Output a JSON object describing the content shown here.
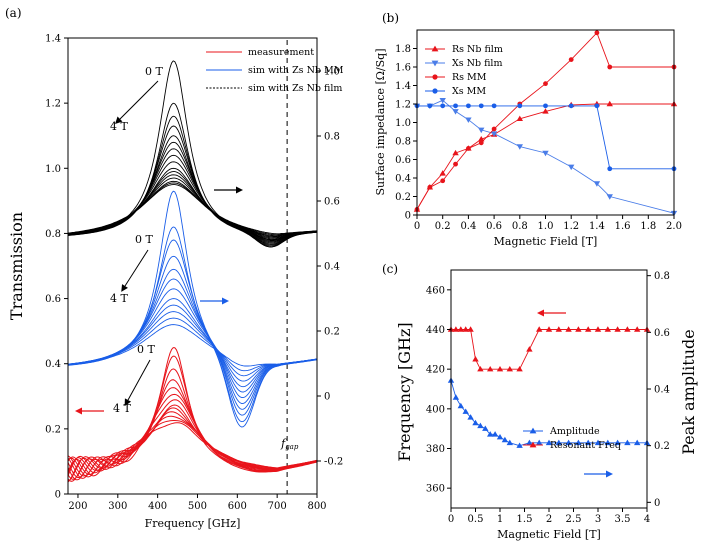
{
  "chart_data": [
    {
      "panel": "(a)",
      "type": "line",
      "xlabel": "Frequency [GHz]",
      "ylabel": "Transmission",
      "xlim": [
        175,
        800
      ],
      "ylim": [
        0,
        1.4
      ],
      "xticks": [
        "200",
        "300",
        "400",
        "500",
        "600",
        "700",
        "800"
      ],
      "yticks": [
        "0",
        "0.2",
        "0.4",
        "0.6",
        "0.8",
        "1.0",
        "1.2",
        "1.4"
      ],
      "y2ticks": [
        "-0.2",
        "0",
        "0.2",
        "0.4",
        "0.6",
        "0.8",
        "1.0"
      ],
      "legend": [
        "measurement",
        "sim with Zs Nb MM",
        "sim with Zs Nb film"
      ],
      "fgap_label": "f",
      "fgap_sub": "gap",
      "fgap_x": 725,
      "field_start": "0 T",
      "field_end": "4 T",
      "colors": {
        "measurement": "#e8141b",
        "mm": "#1a5ee8",
        "film": "#000000"
      },
      "series_groups": [
        {
          "name": "sim with Zs Nb film",
          "center": 440,
          "peaks": [
            1.33,
            1.2,
            1.16,
            1.13,
            1.1,
            1.08,
            1.06,
            1.04,
            1.02,
            1.0,
            0.99,
            0.98,
            0.97,
            0.96,
            0.955,
            0.95
          ]
        },
        {
          "name": "sim with Zs Nb MM",
          "center": 440,
          "peaks": [
            0.93,
            0.82,
            0.78,
            0.73,
            0.69,
            0.66,
            0.63,
            0.6,
            0.58,
            0.56,
            0.54,
            0.52
          ]
        },
        {
          "name": "measurement",
          "center": 440,
          "peaks": [
            0.45,
            0.42,
            0.38,
            0.35,
            0.33,
            0.31,
            0.29,
            0.27,
            0.26,
            0.25,
            0.24,
            0.23,
            0.22
          ]
        }
      ]
    },
    {
      "panel": "(b)",
      "type": "line",
      "xlabel": "Magnetic Field [T]",
      "ylabel": "Surface impedance [Ω/Sq]",
      "xlim": [
        0,
        2.0
      ],
      "ylim": [
        0,
        2.0
      ],
      "xticks": [
        "0",
        "0.2",
        "0.4",
        "0.6",
        "0.8",
        "1.0",
        "1.2",
        "1.4",
        "1.6",
        "1.8",
        "2.0"
      ],
      "yticks": [
        "0",
        "0.2",
        "0.4",
        "0.6",
        "0.8",
        "1.0",
        "1.2",
        "1.4",
        "1.6",
        "1.8"
      ],
      "series": [
        {
          "name": "Rs Nb film",
          "marker": "triangle-up",
          "x": [
            0,
            0.1,
            0.2,
            0.3,
            0.4,
            0.5,
            0.6,
            0.8,
            1.0,
            1.2,
            1.4,
            1.5,
            2.0
          ],
          "values": [
            0.06,
            0.3,
            0.45,
            0.67,
            0.72,
            0.82,
            0.87,
            1.04,
            1.12,
            1.19,
            1.2,
            1.2,
            1.2
          ]
        },
        {
          "name": "Xs Nb film",
          "marker": "triangle-down",
          "x": [
            0,
            0.1,
            0.2,
            0.3,
            0.4,
            0.5,
            0.6,
            0.8,
            1.0,
            1.2,
            1.4,
            1.5,
            2.0
          ],
          "values": [
            1.18,
            1.18,
            1.24,
            1.12,
            1.03,
            0.92,
            0.88,
            0.74,
            0.67,
            0.52,
            0.34,
            0.2,
            0.02
          ]
        },
        {
          "name": "Rs MM",
          "marker": "circle",
          "x": [
            0,
            0.1,
            0.2,
            0.3,
            0.4,
            0.5,
            0.6,
            0.8,
            1.0,
            1.2,
            1.4,
            1.5,
            2.0
          ],
          "values": [
            0.06,
            0.3,
            0.37,
            0.55,
            0.72,
            0.78,
            0.93,
            1.2,
            1.42,
            1.68,
            1.97,
            1.6,
            1.6
          ]
        },
        {
          "name": "Xs MM",
          "marker": "circle",
          "x": [
            0,
            0.1,
            0.2,
            0.3,
            0.4,
            0.5,
            0.6,
            0.8,
            1.0,
            1.2,
            1.4,
            1.5,
            2.0
          ],
          "values": [
            1.18,
            1.18,
            1.18,
            1.18,
            1.18,
            1.18,
            1.18,
            1.18,
            1.18,
            1.18,
            1.18,
            0.5,
            0.5
          ]
        }
      ]
    },
    {
      "panel": "(c)",
      "type": "scatter",
      "xlabel": "Magnetic Field [T]",
      "ylabel": "Frequency [GHz]",
      "y2label": "Peak amplitude",
      "xlim": [
        0,
        4.0
      ],
      "ylim": [
        350,
        470
      ],
      "y2lim": [
        -0.02,
        0.82
      ],
      "xticks": [
        "0",
        "0.5",
        "1",
        "1.5",
        "2",
        "2.5",
        "3",
        "3.5",
        "4"
      ],
      "yticks": [
        "360",
        "380",
        "400",
        "420",
        "440",
        "460"
      ],
      "y2ticks": [
        "0",
        "0.2",
        "0.4",
        "0.6",
        "0.8"
      ],
      "series": [
        {
          "name": "Amplitude",
          "axis": "right",
          "marker": "triangle-up",
          "x": [
            0,
            0.1,
            0.2,
            0.3,
            0.4,
            0.5,
            0.6,
            0.7,
            0.8,
            0.9,
            1.0,
            1.1,
            1.2,
            1.4,
            1.6,
            1.8,
            2.0,
            2.2,
            2.4,
            2.6,
            2.8,
            3.0,
            3.2,
            3.4,
            3.6,
            3.8,
            4.0
          ],
          "values": [
            0.43,
            0.37,
            0.34,
            0.32,
            0.3,
            0.28,
            0.27,
            0.26,
            0.24,
            0.24,
            0.23,
            0.22,
            0.21,
            0.2,
            0.21,
            0.21,
            0.21,
            0.21,
            0.21,
            0.21,
            0.21,
            0.21,
            0.21,
            0.21,
            0.21,
            0.21,
            0.21
          ]
        },
        {
          "name": "Resonant Freq",
          "axis": "left",
          "marker": "triangle-up",
          "x": [
            0,
            0.1,
            0.2,
            0.3,
            0.4,
            0.5,
            0.6,
            0.8,
            1.0,
            1.2,
            1.4,
            1.6,
            1.8,
            2.0,
            2.2,
            2.4,
            2.6,
            2.8,
            3.0,
            3.2,
            3.4,
            3.6,
            3.8,
            4.0
          ],
          "values": [
            440,
            440,
            440,
            440,
            440,
            425,
            420,
            420,
            420,
            420,
            420,
            430,
            440,
            440,
            440,
            440,
            440,
            440,
            440,
            440,
            440,
            440,
            440,
            440
          ]
        }
      ]
    }
  ]
}
